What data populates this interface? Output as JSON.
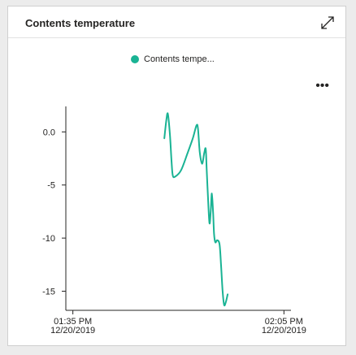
{
  "card": {
    "title": "Contents temperature",
    "expand_icon": "expand-icon",
    "more_icon": "more-options-icon",
    "more_label": "•••"
  },
  "legend": {
    "label": "Contents tempe...",
    "color": "#1ab394"
  },
  "chart_data": {
    "type": "line",
    "title": "Contents temperature",
    "xlabel": "",
    "ylabel": "",
    "ylim": [
      -16.8,
      2.4
    ],
    "yticks": [
      {
        "value": 0,
        "label": "0.0"
      },
      {
        "value": -5,
        "label": "-5"
      },
      {
        "value": -10,
        "label": "-10"
      },
      {
        "value": -15,
        "label": "-15"
      }
    ],
    "xlim": [
      "12/20/2019 13:34",
      "12/20/2019 14:06"
    ],
    "xticks": [
      {
        "value": "12/20/2019 13:35",
        "line1": "01:35 PM",
        "line2": "12/20/2019"
      },
      {
        "value": "12/20/2019 14:05",
        "line1": "02:05 PM",
        "line2": "12/20/2019"
      }
    ],
    "series": [
      {
        "name": "Contents tempe...",
        "color": "#1ab394",
        "points": [
          [
            "12/20/2019 13:48:00",
            -0.6
          ],
          [
            "12/20/2019 13:48:17",
            1.1
          ],
          [
            "12/20/2019 13:48:30",
            1.7
          ],
          [
            "12/20/2019 13:48:48",
            -0.3
          ],
          [
            "12/20/2019 13:49:01",
            -2.7
          ],
          [
            "12/20/2019 13:49:12",
            -4.1
          ],
          [
            "12/20/2019 13:49:34",
            -4.2
          ],
          [
            "12/20/2019 13:50:23",
            -3.6
          ],
          [
            "12/20/2019 13:51:18",
            -2.0
          ],
          [
            "12/20/2019 13:52:03",
            -0.6
          ],
          [
            "12/20/2019 13:52:34",
            0.6
          ],
          [
            "12/20/2019 13:52:47",
            0.3
          ],
          [
            "12/20/2019 13:53:02",
            -1.9
          ],
          [
            "12/20/2019 13:53:22",
            -3.0
          ],
          [
            "12/20/2019 13:53:40",
            -2.0
          ],
          [
            "12/20/2019 13:53:53",
            -1.6
          ],
          [
            "12/20/2019 13:54:01",
            -3.5
          ],
          [
            "12/20/2019 13:54:12",
            -6.1
          ],
          [
            "12/20/2019 13:54:25",
            -8.6
          ],
          [
            "12/20/2019 13:54:36",
            -7.4
          ],
          [
            "12/20/2019 13:54:45",
            -5.8
          ],
          [
            "12/20/2019 13:54:56",
            -7.6
          ],
          [
            "12/20/2019 13:55:04",
            -9.6
          ],
          [
            "12/20/2019 13:55:15",
            -10.4
          ],
          [
            "12/20/2019 13:55:31",
            -10.2
          ],
          [
            "12/20/2019 13:55:51",
            -10.6
          ],
          [
            "12/20/2019 13:56:04",
            -12.6
          ],
          [
            "12/20/2019 13:56:17",
            -15.0
          ],
          [
            "12/20/2019 13:56:30",
            -16.3
          ],
          [
            "12/20/2019 13:56:45",
            -16.0
          ],
          [
            "12/20/2019 13:57:00",
            -15.3
          ]
        ]
      }
    ]
  }
}
